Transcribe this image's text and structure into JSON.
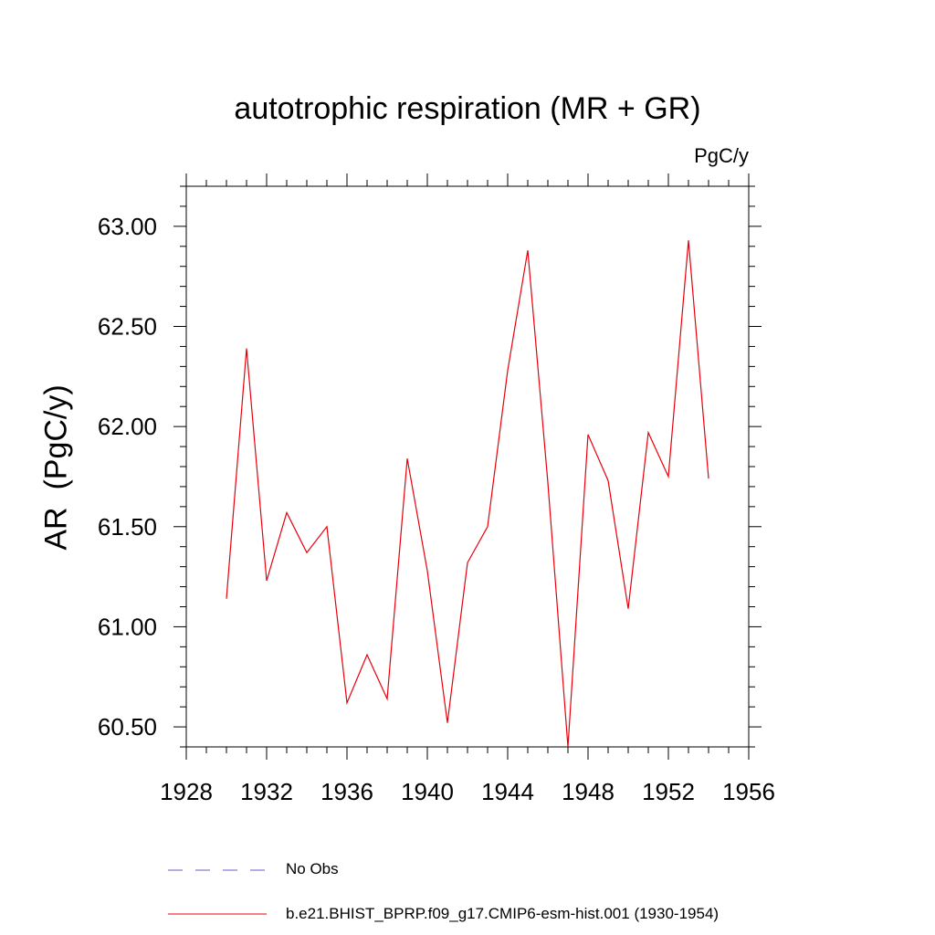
{
  "chart_data": {
    "type": "line",
    "title": "autotrophic respiration (MR + GR)",
    "units_label": "PgC/y",
    "ylabel": "AR  (PgC/y)",
    "xlabel": "",
    "xlim": [
      1928,
      1956
    ],
    "ylim": [
      60.4,
      63.2
    ],
    "x_ticks": [
      1928,
      1932,
      1936,
      1940,
      1944,
      1948,
      1952,
      1956
    ],
    "y_ticks": [
      60.5,
      61.0,
      61.5,
      62.0,
      62.5,
      63.0
    ],
    "y_tick_labels": [
      "60.50",
      "61.00",
      "61.50",
      "62.00",
      "62.50",
      "63.00"
    ],
    "series": [
      {
        "name": "b.e21.BHIST_BPRP.f09_g17.CMIP6-esm-hist.001 (1930-1954)",
        "color": "#e8000b",
        "style": "solid",
        "x": [
          1930,
          1931,
          1932,
          1933,
          1934,
          1935,
          1936,
          1937,
          1938,
          1939,
          1940,
          1941,
          1942,
          1943,
          1944,
          1945,
          1946,
          1947,
          1948,
          1949,
          1950,
          1951,
          1952,
          1953,
          1954
        ],
        "values": [
          61.14,
          62.39,
          61.23,
          61.57,
          61.37,
          61.5,
          60.62,
          60.86,
          60.64,
          61.84,
          61.28,
          60.52,
          61.32,
          61.5,
          62.28,
          62.88,
          61.72,
          60.4,
          61.96,
          61.73,
          61.09,
          61.97,
          61.75,
          62.93,
          61.74
        ]
      }
    ],
    "legend": [
      {
        "label": "No Obs",
        "color": "#6a5acd",
        "style": "dashed"
      },
      {
        "label": "b.e21.BHIST_BPRP.f09_g17.CMIP6-esm-hist.001 (1930-1954)",
        "color": "#e8000b",
        "style": "solid"
      }
    ]
  }
}
